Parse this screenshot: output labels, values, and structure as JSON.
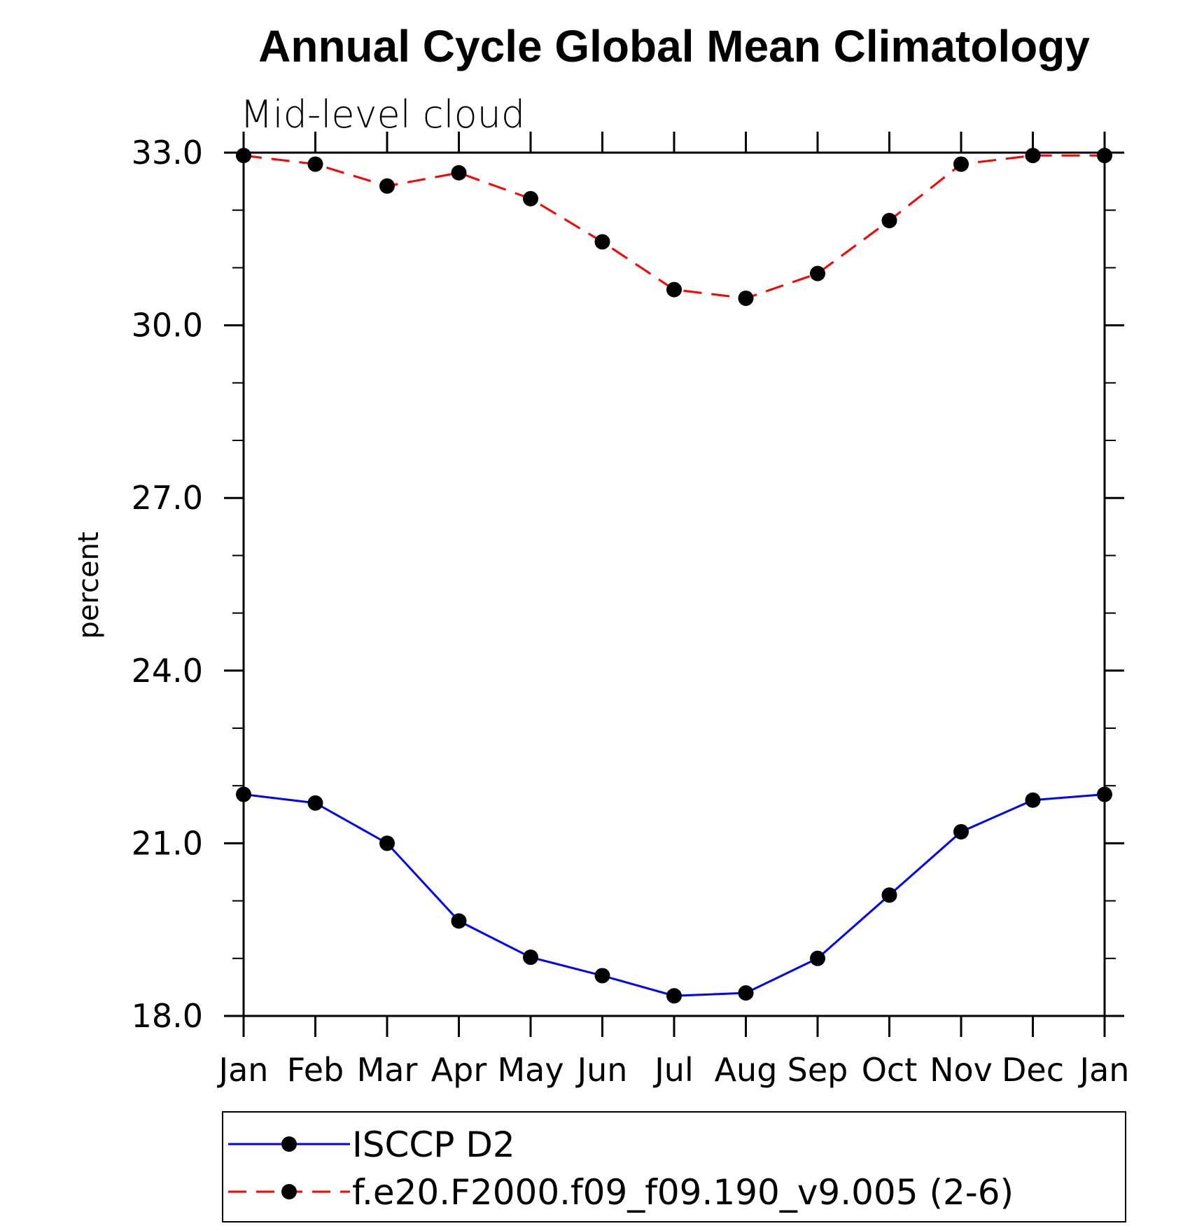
{
  "chart_data": {
    "type": "line",
    "title": "Annual Cycle Global Mean Climatology",
    "subtitle": "Mid-level cloud",
    "xlabel": "",
    "ylabel": "percent",
    "categories": [
      "Jan",
      "Feb",
      "Mar",
      "Apr",
      "May",
      "Jun",
      "Jul",
      "Aug",
      "Sep",
      "Oct",
      "Nov",
      "Dec",
      "Jan"
    ],
    "ylim": [
      18.0,
      33.0
    ],
    "yticks": [
      18.0,
      21.0,
      24.0,
      27.0,
      30.0,
      33.0
    ],
    "ytick_labels": [
      "18.0",
      "21.0",
      "24.0",
      "27.0",
      "30.0",
      "33.0"
    ],
    "yminor_step": 1.0,
    "grid": false,
    "legend_position": "bottom",
    "series": [
      {
        "name": "ISCCP D2",
        "color": "#0000ff",
        "line_style": "solid",
        "marker": "filled-circle",
        "marker_color": "#000000",
        "values": [
          21.85,
          21.7,
          21.0,
          19.65,
          19.02,
          18.7,
          18.35,
          18.4,
          19.0,
          20.1,
          21.2,
          21.75,
          21.85
        ]
      },
      {
        "name": "f.e20.F2000.f09_f09.190_v9.005 (2-6)",
        "color": "#ff0000",
        "line_style": "dashed",
        "marker": "filled-circle",
        "marker_color": "#000000",
        "values": [
          32.95,
          32.8,
          32.42,
          32.65,
          32.2,
          31.45,
          30.62,
          30.47,
          30.9,
          31.82,
          32.8,
          32.95,
          32.95
        ]
      }
    ]
  }
}
